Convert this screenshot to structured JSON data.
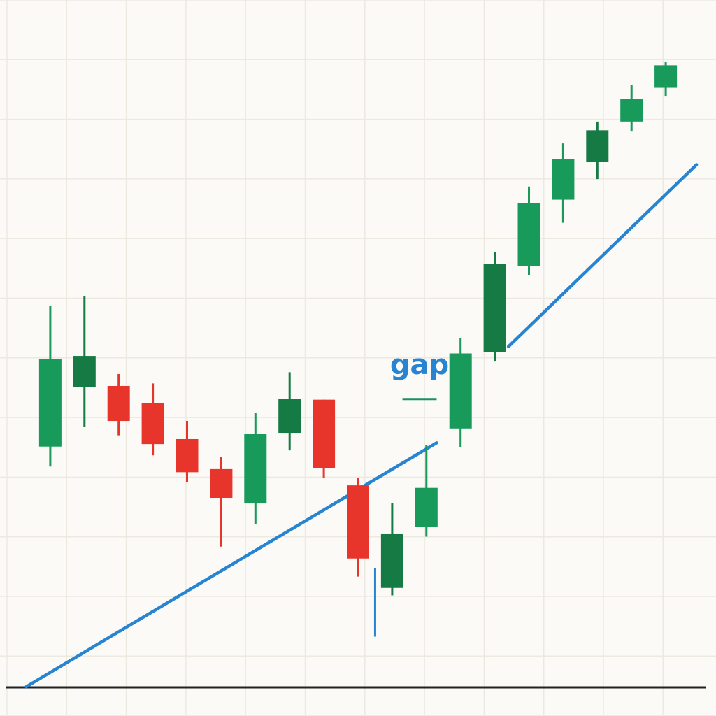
{
  "chart_data": {
    "type": "candlestick",
    "title": "",
    "xlabel": "",
    "ylabel": "",
    "grid": true,
    "ylim": [
      0,
      100
    ],
    "candles": [
      {
        "index": 1,
        "open": 38.4,
        "high": 60.9,
        "low": 35.2,
        "close": 52.4,
        "direction": "up"
      },
      {
        "index": 2,
        "open": 47.9,
        "high": 62.5,
        "low": 41.5,
        "close": 52.9,
        "direction": "up"
      },
      {
        "index": 3,
        "open": 48.1,
        "high": 50.0,
        "low": 40.2,
        "close": 42.5,
        "direction": "down"
      },
      {
        "index": 4,
        "open": 45.4,
        "high": 48.5,
        "low": 37.0,
        "close": 38.8,
        "direction": "down"
      },
      {
        "index": 5,
        "open": 39.6,
        "high": 42.5,
        "low": 32.7,
        "close": 34.3,
        "direction": "down"
      },
      {
        "index": 6,
        "open": 34.8,
        "high": 36.7,
        "low": 22.4,
        "close": 30.2,
        "direction": "down"
      },
      {
        "index": 7,
        "open": 29.3,
        "high": 43.8,
        "low": 26.0,
        "close": 40.4,
        "direction": "up"
      },
      {
        "index": 8,
        "open": 40.6,
        "high": 50.3,
        "low": 37.8,
        "close": 46.0,
        "direction": "up"
      },
      {
        "index": 9,
        "open": 45.9,
        "high": 45.9,
        "low": 33.4,
        "close": 34.9,
        "direction": "down"
      },
      {
        "index": 10,
        "open": 32.2,
        "high": 33.4,
        "low": 17.6,
        "close": 20.5,
        "direction": "down"
      },
      {
        "index": 11,
        "open": 15.8,
        "high": 29.4,
        "low": 14.6,
        "close": 24.5,
        "direction": "up"
      },
      {
        "index": 12,
        "open": 25.6,
        "high": 38.7,
        "low": 24.0,
        "close": 31.8,
        "direction": "up"
      },
      {
        "index": 13,
        "open": 41.3,
        "high": 55.7,
        "low": 38.3,
        "close": 53.3,
        "direction": "up"
      },
      {
        "index": 14,
        "open": 53.5,
        "high": 69.5,
        "low": 52.0,
        "close": 67.6,
        "direction": "up"
      },
      {
        "index": 15,
        "open": 67.3,
        "high": 80.0,
        "low": 65.8,
        "close": 77.3,
        "direction": "up"
      },
      {
        "index": 16,
        "open": 77.9,
        "high": 86.9,
        "low": 74.2,
        "close": 84.4,
        "direction": "up"
      },
      {
        "index": 17,
        "open": 83.9,
        "high": 90.4,
        "low": 81.2,
        "close": 89.0,
        "direction": "up"
      },
      {
        "index": 18,
        "open": 90.4,
        "high": 96.2,
        "low": 88.8,
        "close": 94.0,
        "direction": "up"
      },
      {
        "index": 19,
        "open": 95.8,
        "high": 100.0,
        "low": 94.4,
        "close": 99.4,
        "direction": "up"
      }
    ],
    "trendlines": [
      {
        "name": "",
        "points": [
          [
            0.3,
            0
          ],
          [
            12.3,
            39
          ]
        ]
      },
      {
        "name": "",
        "points": [
          [
            14.4,
            54.4
          ],
          [
            19.9,
            83.5
          ]
        ]
      }
    ],
    "gap_marker": {
      "value": 46.0,
      "x_range": [
        11.3,
        12.3
      ]
    },
    "annotations": [
      {
        "text": "gap",
        "x": 11.8,
        "y": 50.0
      }
    ]
  },
  "colors": {
    "background": "#fbfaf6",
    "grid": "#ece9e1",
    "baseline": "#222222",
    "up": "#179a5a",
    "up_dark": "#157a44",
    "down": "#e8352c",
    "trendline": "#2784d3",
    "gap_marker": "#1a8f63",
    "annotation": "#2784d3"
  }
}
